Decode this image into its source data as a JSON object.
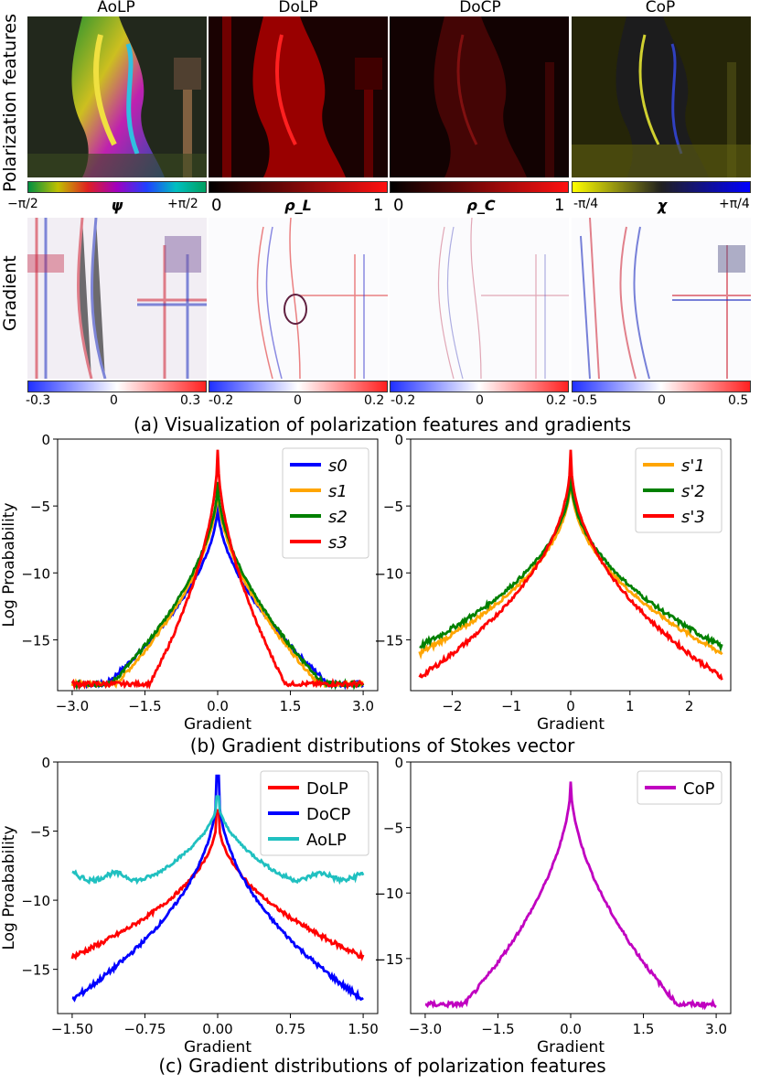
{
  "panel_a": {
    "column_titles": [
      "AoLP",
      "DoLP",
      "DoCP",
      "CoP"
    ],
    "row_label_features": "Polarization features",
    "row_label_gradient": "Gradient",
    "feature_bars": [
      {
        "left": "−π/2",
        "symbol": "ψ",
        "right": "+π/2"
      },
      {
        "left": "0",
        "symbol": "ρ_L",
        "right": "1"
      },
      {
        "left": "0",
        "symbol": "ρ_C",
        "right": "1"
      },
      {
        "left": "-π/4",
        "symbol": "χ",
        "right": "+π/4"
      }
    ],
    "gradient_bars": [
      {
        "left": "-0.3",
        "mid": "0",
        "right": "0.3"
      },
      {
        "left": "-0.2",
        "mid": "0",
        "right": "0.2"
      },
      {
        "left": "-0.2",
        "mid": "0",
        "right": "0.2"
      },
      {
        "left": "-0.5",
        "mid": "0",
        "right": "0.5"
      }
    ],
    "caption": "(a) Visualization of polarization features and gradients",
    "colors": {
      "red": "#e8141e",
      "blue": "#2a2ae0",
      "yellow": "#d8d800"
    }
  },
  "panel_b": {
    "caption": "(b) Gradient distributions of Stokes vector"
  },
  "panel_c": {
    "caption": "(c) Gradient distributions of polarization features"
  },
  "chart_data": [
    {
      "type": "line",
      "xlabel": "Gradient",
      "ylabel": "Log Proabability",
      "xlim": [
        -3.3,
        3.3
      ],
      "ylim": [
        -18.8,
        0
      ],
      "xticks": [
        -3.0,
        -1.5,
        0.0,
        1.5,
        3.0
      ],
      "xtick_labels": [
        "−3.0",
        "−1.5",
        "0.0",
        "1.5",
        "3.0"
      ],
      "yticks": [
        0,
        -5,
        -10,
        -15
      ],
      "ytick_labels": [
        "0",
        "−5",
        "−10",
        "−15"
      ],
      "legend": "top-right",
      "series": [
        {
          "name": "s0",
          "color": "#0000ff",
          "peak": -4.8,
          "floor": -18.3,
          "decay": 0.9,
          "reach": 2.3
        },
        {
          "name": "s1",
          "color": "#ffa500",
          "peak": -3.5,
          "floor": -18.3,
          "decay": 0.7,
          "reach": 2.1
        },
        {
          "name": "s2",
          "color": "#008000",
          "peak": -3.2,
          "floor": -18.3,
          "decay": 0.72,
          "reach": 2.2
        },
        {
          "name": "s3",
          "color": "#ff0000",
          "peak": -0.8,
          "floor": -18.3,
          "decay": 0.45,
          "reach": 1.4
        }
      ]
    },
    {
      "type": "line",
      "xlabel": "Gradient",
      "ylabel": "",
      "xlim": [
        -2.7,
        2.7
      ],
      "ylim": [
        -18.8,
        0
      ],
      "xticks": [
        -2,
        -1,
        0,
        1,
        2
      ],
      "xtick_labels": [
        "−2",
        "−1",
        "0",
        "1",
        "2"
      ],
      "yticks": [
        0,
        -5,
        -10,
        -15
      ],
      "ytick_labels": [
        "0",
        "−5",
        "−10",
        "−15"
      ],
      "legend": "top-right",
      "series": [
        {
          "name": "s'1",
          "color": "#ffa500",
          "peak": -2.5,
          "end": -16.0
        },
        {
          "name": "s'2",
          "color": "#008000",
          "peak": -2.3,
          "end": -15.5
        },
        {
          "name": "s'3",
          "color": "#ff0000",
          "peak": -0.8,
          "end": -17.8
        }
      ]
    },
    {
      "type": "line",
      "xlabel": "Gradient",
      "ylabel": "Log Proabability",
      "xlim": [
        -1.65,
        1.65
      ],
      "ylim": [
        -18.2,
        0
      ],
      "xticks": [
        -1.5,
        -0.75,
        0.0,
        0.75,
        1.5
      ],
      "xtick_labels": [
        "−1.50",
        "−0.75",
        "0.00",
        "0.75",
        "1.50"
      ],
      "yticks": [
        0,
        -5,
        -10,
        -15
      ],
      "ytick_labels": [
        "0",
        "−5",
        "−10",
        "−15"
      ],
      "legend": "top-right",
      "series": [
        {
          "name": "DoLP",
          "color": "#ff0000",
          "peak": -3.5,
          "end": -14.1
        },
        {
          "name": "DoCP",
          "color": "#0000ff",
          "peak": -1.0,
          "end": -17.2
        },
        {
          "name": "AoLP",
          "color": "#20c0c0",
          "peak": -2.5,
          "end": -8.3
        }
      ]
    },
    {
      "type": "line",
      "xlabel": "Gradient",
      "ylabel": "",
      "xlim": [
        -3.3,
        3.3
      ],
      "ylim": [
        -19.2,
        0
      ],
      "xticks": [
        -3.0,
        -1.5,
        0.0,
        1.5,
        3.0
      ],
      "xtick_labels": [
        "−3.0",
        "−1.5",
        "0.0",
        "1.5",
        "3.0"
      ],
      "yticks": [
        0,
        -5,
        -10,
        -15
      ],
      "ytick_labels": [
        "0",
        "−5",
        "−10",
        "−15"
      ],
      "legend": "top-right",
      "series": [
        {
          "name": "CoP",
          "color": "#c000c0",
          "peak": -1.5,
          "floor": -18.5,
          "reach": 2.2
        }
      ]
    }
  ]
}
